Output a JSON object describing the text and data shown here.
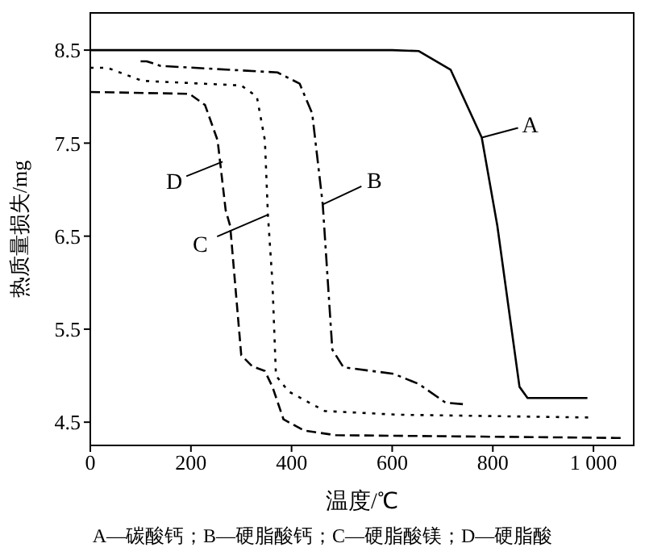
{
  "chart_data": {
    "type": "line",
    "xlabel": "温度/℃",
    "ylabel": "热质量损失/mg",
    "xlim": [
      0,
      1080
    ],
    "xticks": [
      0,
      200,
      400,
      600,
      800,
      {
        "value": 1000,
        "label": "1 000"
      }
    ],
    "ylim": [
      4.25,
      8.9
    ],
    "yticks": [
      4.5,
      5.5,
      6.5,
      7.5,
      8.5
    ],
    "marker": "none",
    "series": [
      {
        "color": "#000000",
        "line_style": "solid",
        "x": [
          0,
          300,
          600,
          653,
          716,
          778,
          809,
          853,
          869,
          988
        ],
        "values": [
          8.5,
          8.5,
          8.5,
          8.49,
          8.29,
          7.56,
          6.61,
          4.88,
          4.76,
          4.76
        ]
      },
      {
        "color": "#000000",
        "line_style": "dashdot",
        "x": [
          100,
          112,
          140,
          372,
          416,
          441,
          462,
          481,
          503,
          603,
          653,
          706,
          747
        ],
        "values": [
          8.38,
          8.38,
          8.33,
          8.26,
          8.14,
          7.82,
          6.84,
          5.28,
          5.09,
          5.02,
          4.91,
          4.71,
          4.69
        ]
      },
      {
        "color": "#000000",
        "line_style": "dotted",
        "x": [
          0,
          34,
          103,
          300,
          331,
          347,
          353,
          362,
          369,
          394,
          466,
          612,
          994
        ],
        "values": [
          8.31,
          8.31,
          8.17,
          8.12,
          8.0,
          7.53,
          6.73,
          6.0,
          5.0,
          4.83,
          4.62,
          4.58,
          4.55
        ]
      },
      {
        "color": "#000000",
        "line_style": "dashed",
        "x": [
          0,
          197,
          228,
          253,
          269,
          278,
          300,
          322,
          347,
          362,
          384,
          425,
          488,
          1056
        ],
        "values": [
          8.05,
          8.03,
          7.91,
          7.53,
          6.78,
          6.61,
          5.22,
          5.1,
          5.05,
          4.88,
          4.53,
          4.41,
          4.36,
          4.33
        ]
      }
    ],
    "annotations": [
      {
        "text": "A",
        "x": 778,
        "y": 7.56
      },
      {
        "text": "B",
        "x": 462,
        "y": 6.84
      },
      {
        "text": "C",
        "x": 353,
        "y": 6.73
      },
      {
        "text": "D",
        "x": 263,
        "y": 7.3
      },
      "A—碳酸钙；B—硬脂酸钙；C—硬脂酸镁；D—硬脂酸"
    ]
  }
}
